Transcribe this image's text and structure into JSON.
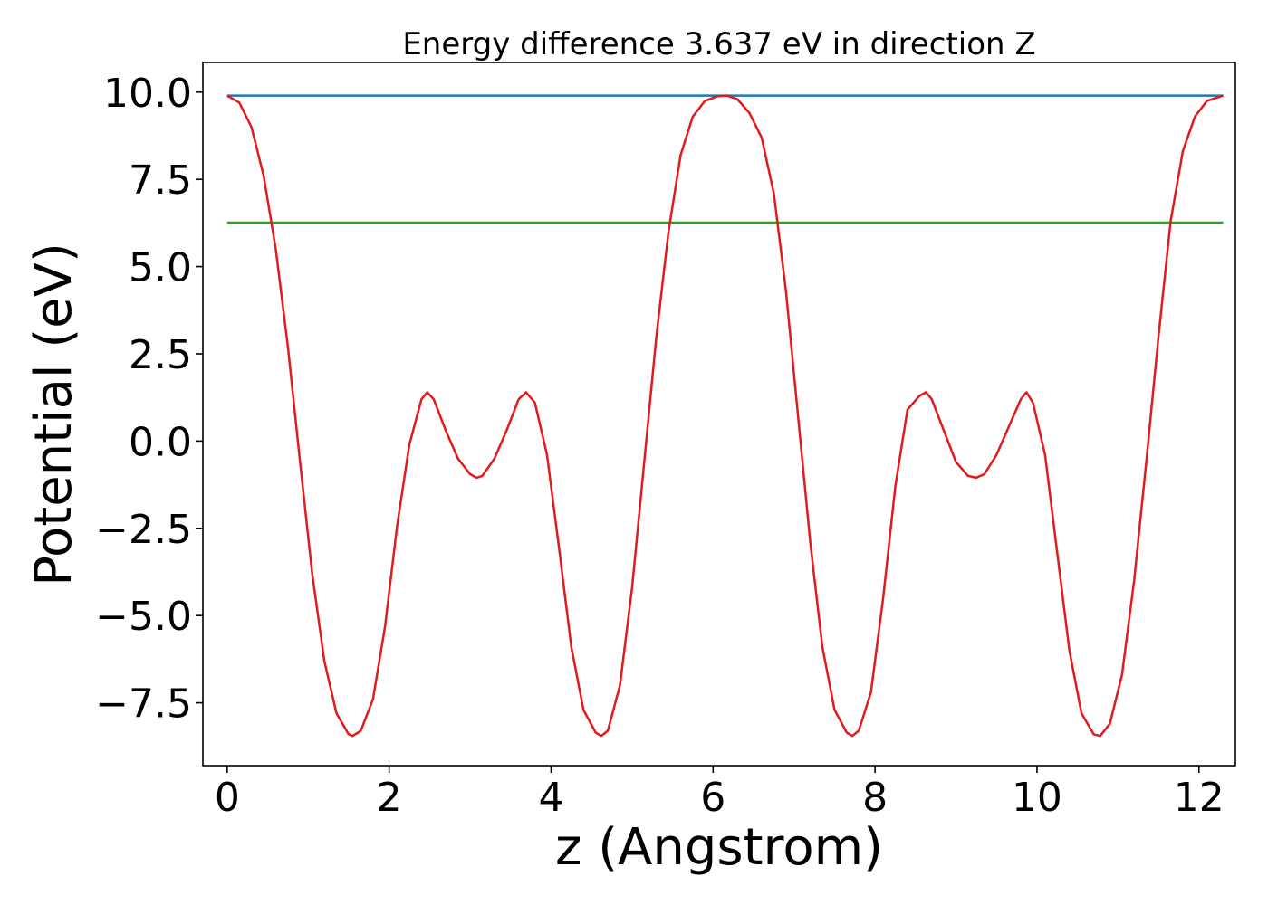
{
  "chart_data": {
    "type": "line",
    "title": "Energy difference 3.637 eV in direction Z",
    "xlabel": "z (Angstrom)",
    "ylabel": "Potential (eV)",
    "xlim": [
      -0.3,
      12.45
    ],
    "ylim": [
      -9.3,
      10.85
    ],
    "x_ticks": [
      0,
      2,
      4,
      6,
      8,
      10,
      12
    ],
    "x_tick_labels": [
      "0",
      "2",
      "4",
      "6",
      "8",
      "10",
      "12"
    ],
    "y_ticks": [
      10.0,
      7.5,
      5.0,
      2.5,
      0.0,
      -2.5,
      -5.0,
      -7.5
    ],
    "y_tick_labels": [
      "10.0",
      "7.5",
      "5.0",
      "2.5",
      "0.0",
      "−2.5",
      "−5.0",
      "−7.5"
    ],
    "grid": false,
    "series": [
      {
        "color": "#1f77b4",
        "x": [
          0.0,
          12.3
        ],
        "y": [
          9.9,
          9.9
        ]
      },
      {
        "color": "#2ca02c",
        "x": [
          0.0,
          12.3
        ],
        "y": [
          6.26,
          6.26
        ]
      },
      {
        "color": "#e31a1c",
        "x": [
          0.0,
          0.15,
          0.3,
          0.45,
          0.6,
          0.75,
          0.9,
          1.05,
          1.2,
          1.35,
          1.5,
          1.55,
          1.65,
          1.8,
          1.95,
          2.1,
          2.25,
          2.4,
          2.47,
          2.55,
          2.7,
          2.85,
          3.0,
          3.08,
          3.15,
          3.3,
          3.45,
          3.6,
          3.69,
          3.8,
          3.95,
          4.1,
          4.25,
          4.4,
          4.55,
          4.62,
          4.7,
          4.85,
          5.0,
          5.15,
          5.3,
          5.45,
          5.6,
          5.75,
          5.9,
          6.05,
          6.17,
          6.3,
          6.45,
          6.6,
          6.75,
          6.9,
          7.05,
          7.2,
          7.35,
          7.5,
          7.65,
          7.72,
          7.8,
          7.95,
          8.1,
          8.25,
          8.4,
          8.55,
          8.63,
          8.7,
          8.85,
          9.0,
          9.15,
          9.25,
          9.35,
          9.5,
          9.65,
          9.8,
          9.87,
          9.95,
          10.1,
          10.25,
          10.4,
          10.55,
          10.7,
          10.78,
          10.9,
          11.05,
          11.2,
          11.35,
          11.5,
          11.65,
          11.8,
          11.95,
          12.1,
          12.3
        ],
        "y": [
          9.9,
          9.7,
          9.0,
          7.6,
          5.5,
          2.7,
          -0.6,
          -3.8,
          -6.3,
          -7.8,
          -8.4,
          -8.45,
          -8.3,
          -7.4,
          -5.3,
          -2.4,
          -0.1,
          1.2,
          1.4,
          1.2,
          0.3,
          -0.5,
          -0.95,
          -1.05,
          -1.0,
          -0.5,
          0.3,
          1.2,
          1.4,
          1.1,
          -0.4,
          -3.1,
          -5.9,
          -7.7,
          -8.35,
          -8.45,
          -8.3,
          -7.0,
          -4.2,
          -0.6,
          3.0,
          6.0,
          8.2,
          9.3,
          9.75,
          9.88,
          9.9,
          9.8,
          9.4,
          8.7,
          7.1,
          4.3,
          0.7,
          -2.9,
          -5.9,
          -7.7,
          -8.35,
          -8.45,
          -8.3,
          -7.2,
          -4.5,
          -1.3,
          0.9,
          1.3,
          1.4,
          1.2,
          0.3,
          -0.6,
          -1.0,
          -1.05,
          -0.95,
          -0.4,
          0.4,
          1.2,
          1.4,
          1.1,
          -0.4,
          -3.2,
          -6.0,
          -7.8,
          -8.4,
          -8.45,
          -8.1,
          -6.7,
          -4.0,
          -0.6,
          3.0,
          6.3,
          8.3,
          9.3,
          9.75,
          9.9
        ]
      }
    ]
  }
}
